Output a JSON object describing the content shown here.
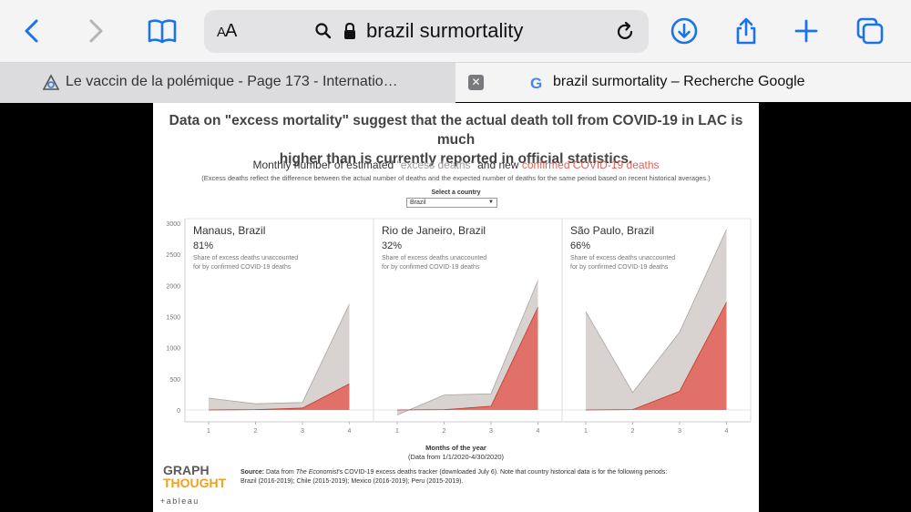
{
  "browser": {
    "address_text": "brazil surmortality",
    "reader_label_small": "A",
    "reader_label_big": "A",
    "tabs": [
      {
        "title": "Le vaccin de la polémique - Page 173 - Internatio…",
        "active": false
      },
      {
        "title": "brazil surmortality – Recherche Google",
        "active": true
      }
    ],
    "tab_close_glyph": "✕",
    "google_glyph": "G"
  },
  "viz": {
    "headline_line1": "Data on \"excess mortality\" suggest that the actual death toll from COVID-19 in LAC is much",
    "headline_line2": "higher than is currently reported in official statistics.",
    "subtitle_prefix": "Monthly number of estimated ",
    "subtitle_excess": "\"excess deaths\"",
    "subtitle_middle": " and new ",
    "subtitle_covid": "confirmed COVID-19 deaths",
    "note": "(Excess deaths reflect the difference between the actual number of deaths and the expected number of deaths for the same period based on recent historical averages.)",
    "select_label": "Select a country",
    "select_value": "Brazil",
    "x_title": "Months of the year",
    "x_range": "(Data from 1/1/2020-4/30/2020)",
    "logo_line1": "GRAPH",
    "logo_line2": "THOUGHT",
    "source_bold": "Source:",
    "source_text1": " Data from ",
    "source_italic": "The Economist",
    "source_text2": "'s COVID-19 excess deaths tracker (downloaded July 6). Note that country historical data is for the following periods:",
    "source_line2": "Brazil (2016-2019); Chile (2015-2019); Mexico (2016-2019); Peru (2015-2019).",
    "tableau": "+ableau"
  },
  "chart_data": {
    "type": "area",
    "x": [
      1,
      2,
      3,
      4
    ],
    "ylim": [
      -200,
      3000
    ],
    "yticks": [
      0,
      500,
      1000,
      1500,
      2000,
      2500,
      3000
    ],
    "colors": {
      "excess": "#d8d3d1",
      "excess_line": "#a9a4a2",
      "covid": "#e07068",
      "covid_line": "#c0392b"
    },
    "panels": [
      {
        "city": "Manaus, Brazil",
        "share": "81%",
        "share_label_1": "Share of excess deaths unaccounted",
        "share_label_2": "for by confirmed COVID-19 deaths",
        "excess": [
          190,
          100,
          120,
          1700
        ],
        "covid": [
          0,
          5,
          30,
          420
        ]
      },
      {
        "city": "Rio de Janeiro, Brazil",
        "share": "32%",
        "share_label_1": "Share of excess deaths unaccounted",
        "share_label_2": "for by confirmed COVID-19 deaths",
        "excess": [
          -80,
          240,
          260,
          2080
        ],
        "covid": [
          0,
          5,
          60,
          1650
        ]
      },
      {
        "city": "São Paulo, Brazil",
        "share": "66%",
        "share_label_1": "Share of excess deaths unaccounted",
        "share_label_2": "for by confirmed COVID-19 deaths",
        "excess": [
          1580,
          280,
          1250,
          2900
        ],
        "covid": [
          0,
          5,
          300,
          1730
        ]
      }
    ]
  }
}
